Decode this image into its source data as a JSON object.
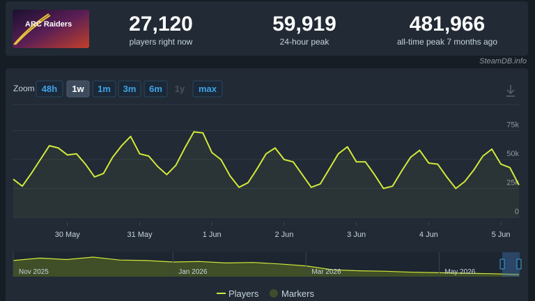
{
  "header": {
    "thumbnail_text": "ARC Raiders",
    "stats": [
      {
        "value": "27,120",
        "label": "players right now"
      },
      {
        "value": "59,919",
        "label": "24-hour peak"
      },
      {
        "value": "481,966",
        "label": "all-time peak 7 months ago"
      }
    ],
    "credit": "SteamDB.info"
  },
  "zoom": {
    "label": "Zoom",
    "options": [
      "48h",
      "1w",
      "1m",
      "3m",
      "6m",
      "1y",
      "max"
    ],
    "active": "1w",
    "disabled": "1y"
  },
  "chart_data": {
    "type": "line",
    "categories": [
      null,
      null,
      null,
      null,
      null,
      null,
      "30 May",
      null,
      null,
      null,
      null,
      null,
      null,
      null,
      "31 May",
      null,
      null,
      null,
      null,
      null,
      null,
      null,
      "1 Jun",
      null,
      null,
      null,
      null,
      null,
      null,
      null,
      "2 Jun",
      null,
      null,
      null,
      null,
      null,
      null,
      null,
      "3 Jun",
      null,
      null,
      null,
      null,
      null,
      null,
      null,
      "4 Jun",
      null,
      null,
      null,
      null,
      null,
      null,
      null,
      "5 Jun",
      null,
      null
    ],
    "series": [
      {
        "name": "Players",
        "color": "#d2ea3a",
        "values": [
          33000,
          27000,
          38000,
          50000,
          62000,
          60000,
          54000,
          55000,
          46000,
          35000,
          38000,
          52000,
          62000,
          70000,
          55000,
          53000,
          44000,
          37000,
          45000,
          60000,
          74000,
          73000,
          56000,
          50000,
          36000,
          26000,
          30000,
          42000,
          55000,
          60000,
          50000,
          48000,
          37000,
          26000,
          29000,
          42000,
          55000,
          61000,
          48000,
          48000,
          37000,
          25000,
          27000,
          40000,
          52000,
          58000,
          47000,
          46000,
          35000,
          25000,
          31000,
          41000,
          53000,
          59000,
          46000,
          43000,
          28000
        ]
      }
    ],
    "ylim": [
      0,
      100000
    ],
    "yticks": [
      {
        "value": 0,
        "label": "0"
      },
      {
        "value": 25000,
        "label": "25k"
      },
      {
        "value": 50000,
        "label": "50k"
      },
      {
        "value": 75000,
        "label": "75k"
      }
    ],
    "grid": true,
    "marker_legend": {
      "name": "Markers",
      "color": "#3f4d2c"
    },
    "navigator": {
      "categories": [
        "Nov 2025",
        null,
        null,
        null,
        null,
        null,
        "Jan 2026",
        null,
        null,
        null,
        null,
        "Mar 2026",
        null,
        null,
        null,
        null,
        "May 2026",
        null,
        null,
        null
      ],
      "values": [
        330000,
        380000,
        350000,
        400000,
        340000,
        330000,
        300000,
        310000,
        280000,
        290000,
        260000,
        220000,
        140000,
        120000,
        110000,
        90000,
        80000,
        70000,
        60000,
        45000
      ],
      "ylim": [
        0,
        500000
      ]
    }
  }
}
